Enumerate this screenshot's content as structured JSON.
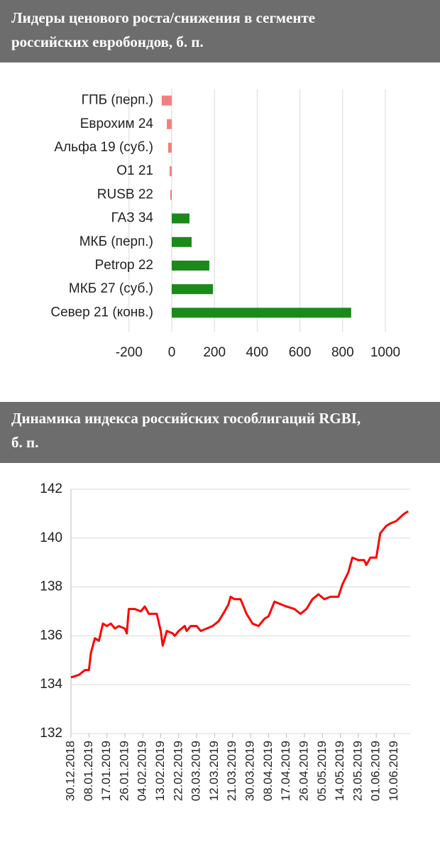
{
  "chart_data": [
    {
      "type": "hbar",
      "title": "Лидеры ценового роста/снижения в сегменте российских евробондов, б. п.",
      "categories": [
        "ГПБ (перп.)",
        "Еврохим 24",
        "Альфа 19 (суб.)",
        "O1 21",
        "RUSB 22",
        "ГАЗ 34",
        "МКБ (перп.)",
        "Petrop 22",
        "МКБ 27 (суб.)",
        "Север 21 (конв.)"
      ],
      "values": [
        -47,
        -23,
        -17,
        -10,
        -7,
        83,
        93,
        176,
        193,
        840
      ],
      "color_negative": "#f08080",
      "color_positive": "#1a8a1a",
      "xlim": [
        -200,
        1000
      ],
      "xticks": [
        -200,
        0,
        200,
        400,
        600,
        800,
        1000
      ],
      "grid": true
    },
    {
      "type": "line",
      "title": "Динамика индекса российских гособлигаций RGBI, б. п.",
      "x": [
        "30.12.2018",
        "03.01.2019",
        "06.01.2019",
        "08.01.2019",
        "09.01.2019",
        "11.01.2019",
        "13.01.2019",
        "15.01.2019",
        "17.01.2019",
        "19.01.2019",
        "21.01.2019",
        "23.01.2019",
        "26.01.2019",
        "27.01.2019",
        "28.01.2019",
        "31.01.2019",
        "03.02.2019",
        "05.02.2019",
        "07.02.2019",
        "11.02.2019",
        "13.02.2019",
        "14.02.2019",
        "16.02.2019",
        "19.02.2019",
        "20.02.2019",
        "22.02.2019",
        "25.02.2019",
        "26.02.2019",
        "28.02.2019",
        "03.03.2019",
        "05.03.2019",
        "08.03.2019",
        "11.03.2019",
        "14.03.2019",
        "17.03.2019",
        "19.03.2019",
        "20.03.2019",
        "22.03.2019",
        "25.03.2019",
        "28.03.2019",
        "31.03.2019",
        "03.04.2019",
        "06.04.2019",
        "08.04.2019",
        "11.04.2019",
        "14.04.2019",
        "17.04.2019",
        "21.04.2019",
        "24.04.2019",
        "27.04.2019",
        "30.04.2019",
        "03.05.2019",
        "06.05.2019",
        "09.05.2019",
        "13.05.2019",
        "15.05.2019",
        "18.05.2019",
        "20.05.2019",
        "23.05.2019",
        "26.05.2019",
        "27.05.2019",
        "29.05.2019",
        "01.06.2019",
        "03.06.2019",
        "06.06.2019",
        "08.06.2019",
        "11.06.2019",
        "15.06.2019",
        "17.06.2019"
      ],
      "values": [
        134.3,
        134.4,
        134.6,
        134.6,
        135.3,
        135.9,
        135.8,
        136.5,
        136.4,
        136.5,
        136.3,
        136.4,
        136.3,
        136.1,
        137.1,
        137.1,
        137.0,
        137.2,
        136.9,
        136.9,
        136.2,
        135.6,
        136.2,
        136.1,
        136.0,
        136.2,
        136.4,
        136.2,
        136.4,
        136.4,
        136.2,
        136.3,
        136.4,
        136.6,
        137.0,
        137.3,
        137.6,
        137.5,
        137.5,
        136.9,
        136.5,
        136.4,
        136.7,
        136.8,
        137.4,
        137.3,
        137.2,
        137.1,
        136.9,
        137.1,
        137.5,
        137.7,
        137.5,
        137.6,
        137.6,
        138.1,
        138.6,
        139.2,
        139.1,
        139.1,
        138.9,
        139.2,
        139.2,
        140.2,
        140.5,
        140.6,
        140.7,
        141.0,
        141.1
      ],
      "color": "#ff0000",
      "xlim": [
        "30.12.2018",
        "18.06.2019"
      ],
      "xticks": [
        "30.12.2018",
        "08.01.2019",
        "17.01.2019",
        "26.01.2019",
        "04.02.2019",
        "13.02.2019",
        "22.02.2019",
        "03.03.2019",
        "12.03.2019",
        "21.03.2019",
        "30.03.2019",
        "08.04.2019",
        "17.04.2019",
        "26.04.2019",
        "05.05.2019",
        "14.05.2019",
        "23.05.2019",
        "01.06.2019",
        "10.06.2019"
      ],
      "ylim": [
        132,
        142
      ],
      "yticks": [
        132,
        134,
        136,
        138,
        140,
        142
      ],
      "grid": true
    }
  ]
}
